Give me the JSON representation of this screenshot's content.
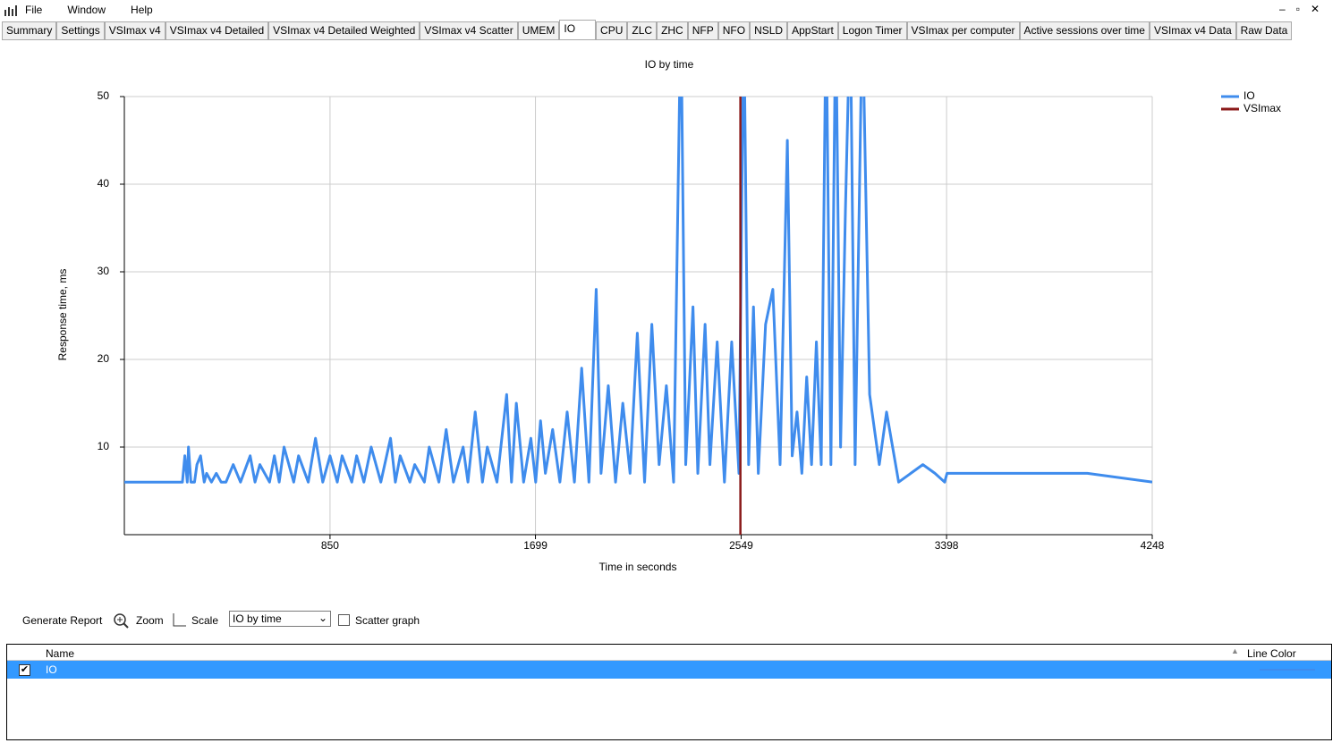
{
  "menu": [
    "File",
    "Window",
    "Help"
  ],
  "tabs": [
    "Summary",
    "Settings",
    "VSImax v4",
    "VSImax v4 Detailed",
    "VSImax v4 Detailed Weighted",
    "VSImax v4 Scatter",
    "UMEM",
    "IO",
    "CPU",
    "ZLC",
    "ZHC",
    "NFP",
    "NFO",
    "NSLD",
    "AppStart",
    "Logon Timer",
    "VSImax per computer",
    "Active sessions over time",
    "VSImax v4 Data",
    "Raw Data"
  ],
  "chart_data": {
    "type": "line",
    "title": "IO by time",
    "x_label": "Time in seconds",
    "y_label": "Response time, ms",
    "xlim": [
      0,
      4248
    ],
    "xticks": [
      850,
      1699,
      2549,
      3398,
      4248
    ],
    "ylim": [
      0,
      50
    ],
    "yticks": [
      10,
      20,
      30,
      40,
      50
    ],
    "grid": true,
    "legend": "right",
    "series": [
      {
        "name": "IO",
        "color": "#3f8ced",
        "x": [
          0,
          240,
          250,
          260,
          265,
          275,
          290,
          300,
          315,
          330,
          340,
          360,
          380,
          400,
          420,
          450,
          480,
          520,
          540,
          560,
          600,
          620,
          640,
          660,
          700,
          720,
          760,
          790,
          820,
          850,
          880,
          900,
          940,
          960,
          990,
          1020,
          1060,
          1100,
          1120,
          1140,
          1180,
          1200,
          1240,
          1260,
          1300,
          1330,
          1360,
          1400,
          1420,
          1450,
          1480,
          1500,
          1540,
          1580,
          1600,
          1620,
          1650,
          1680,
          1700,
          1720,
          1740,
          1770,
          1800,
          1830,
          1860,
          1890,
          1920,
          1950,
          1970,
          2000,
          2030,
          2060,
          2090,
          2120,
          2150,
          2180,
          2210,
          2240,
          2270,
          2300,
          2320,
          2350,
          2370,
          2400,
          2420,
          2450,
          2480,
          2510,
          2540,
          2560,
          2580,
          2600,
          2620,
          2650,
          2680,
          2710,
          2740,
          2760,
          2780,
          2800,
          2820,
          2840,
          2860,
          2880,
          2900,
          2920,
          2940,
          2960,
          2980,
          3000,
          3020,
          3050,
          3080,
          3120,
          3150,
          3200,
          3250,
          3300,
          3350,
          3390,
          3400,
          3980,
          4248
        ],
        "values": [
          6,
          6,
          9,
          6,
          10,
          6,
          6,
          8,
          9,
          6,
          7,
          6,
          7,
          6,
          6,
          8,
          6,
          9,
          6,
          8,
          6,
          9,
          6,
          10,
          6,
          9,
          6,
          11,
          6,
          9,
          6,
          9,
          6,
          9,
          6,
          10,
          6,
          11,
          6,
          9,
          6,
          8,
          6,
          10,
          6,
          12,
          6,
          10,
          6,
          14,
          6,
          10,
          6,
          16,
          6,
          15,
          6,
          11,
          6,
          13,
          7,
          12,
          6,
          14,
          6,
          19,
          6,
          28,
          7,
          17,
          6,
          15,
          7,
          23,
          6,
          24,
          8,
          17,
          6,
          60,
          8,
          26,
          7,
          24,
          8,
          22,
          6,
          22,
          7,
          60,
          8,
          26,
          7,
          24,
          28,
          8,
          45,
          9,
          14,
          7,
          18,
          8,
          22,
          8,
          60,
          8,
          60,
          10,
          37,
          60,
          8,
          60,
          16,
          8,
          14,
          6,
          7,
          8,
          7,
          6,
          7,
          7,
          6
        ]
      }
    ],
    "vlines": [
      {
        "name": "VSImax",
        "color": "#8b1a1a",
        "x": 2546
      }
    ]
  },
  "toolbar": {
    "generate_report": "Generate Report",
    "zoom": "Zoom",
    "scale": "Scale",
    "chart_select": "IO by time",
    "scatter_graph": "Scatter graph"
  },
  "grid": {
    "columns": [
      "Name",
      "Line Color"
    ],
    "rows": [
      {
        "name": "IO"
      }
    ]
  }
}
